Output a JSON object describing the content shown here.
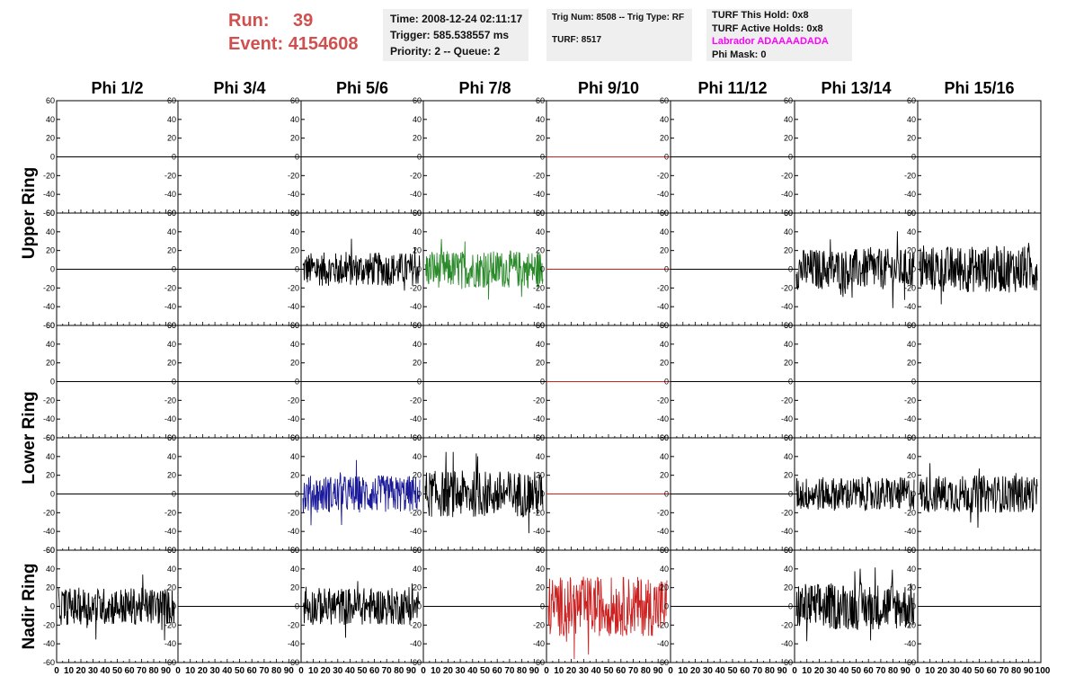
{
  "header": {
    "run_label": "Run:",
    "run_value": "39",
    "event_label": "Event:",
    "event_value": "4154608"
  },
  "info_time": {
    "time": "Time: 2008-12-24 02:11:17",
    "trigger": "Trigger: 585.538557 ms",
    "priority": "Priority: 2 -- Queue: 2"
  },
  "info_trig": {
    "trig": "Trig Num: 8508 -- Trig Type: RF",
    "turf": "TURF: 8517"
  },
  "info_turf": {
    "this_hold": "TURF This Hold: 0x8",
    "active_holds": "TURF Active Holds: 0x8",
    "labrador": "Labrador ADAAAADADA",
    "phi_mask": "Phi Mask: 0"
  },
  "colors": {
    "header_red": "#d05050",
    "labrador": "#ff00ff",
    "green": "#2a8a2a",
    "blue": "#1a1a9a",
    "red": "#cc2222"
  },
  "chart_data": {
    "type": "line",
    "columns": [
      "Phi 1/2",
      "Phi 3/4",
      "Phi 5/6",
      "Phi 7/8",
      "Phi 9/10",
      "Phi 11/12",
      "Phi 13/14",
      "Phi 15/16"
    ],
    "row_labels": [
      "Upper Ring",
      "Lower Ring",
      "Nadir Ring"
    ],
    "ylim": [
      -60,
      60
    ],
    "xlim": [
      0,
      100
    ],
    "y_ticks": [
      60,
      40,
      20,
      0,
      -20,
      -40,
      -60
    ],
    "x_ticks": [
      0,
      10,
      20,
      30,
      40,
      50,
      60,
      70,
      80,
      90,
      100
    ],
    "panels": [
      [
        "flat",
        "flat",
        "flat",
        "flat",
        "flat-red",
        "flat",
        "flat",
        "flat"
      ],
      [
        "flat",
        "flat",
        "black",
        "green",
        "flat-red",
        "flat",
        "black",
        "black"
      ],
      [
        "flat",
        "flat",
        "flat",
        "flat",
        "flat-red",
        "flat",
        "flat",
        "flat"
      ],
      [
        "flat",
        "flat",
        "blue",
        "black",
        "flat-red",
        "flat",
        "black",
        "black"
      ],
      [
        "black",
        "flat",
        "black",
        "flat",
        "red",
        "flat",
        "black",
        "flat"
      ]
    ],
    "amplitude": [
      [
        0,
        0,
        0,
        0,
        0,
        0,
        0,
        0
      ],
      [
        0,
        0,
        18,
        20,
        0,
        0,
        22,
        25
      ],
      [
        0,
        0,
        0,
        0,
        0,
        0,
        0,
        0
      ],
      [
        0,
        0,
        20,
        25,
        0,
        0,
        18,
        20
      ],
      [
        20,
        0,
        20,
        0,
        32,
        0,
        25,
        0
      ]
    ]
  }
}
